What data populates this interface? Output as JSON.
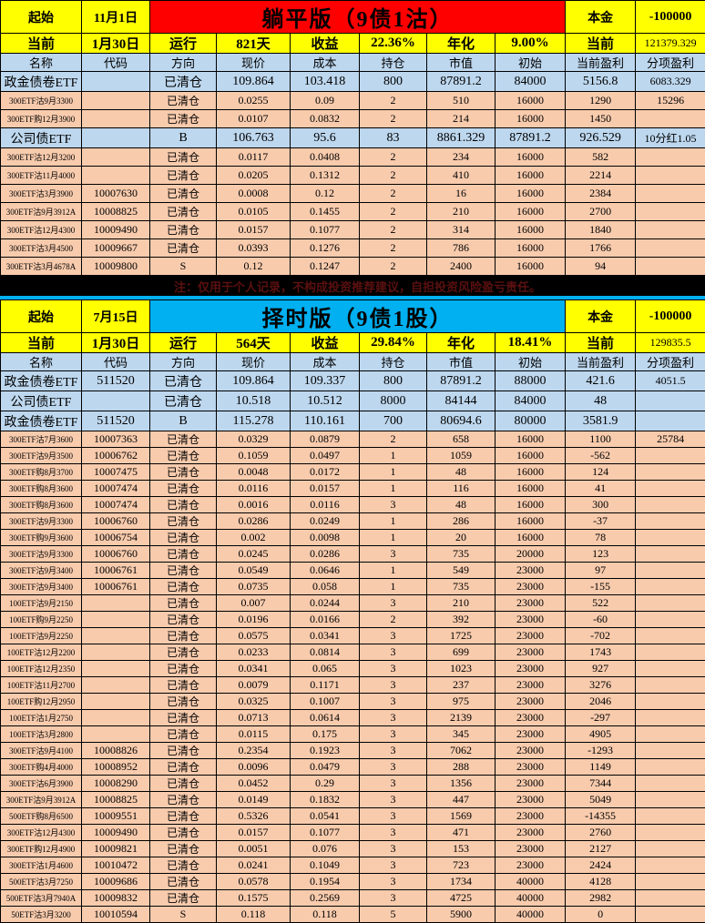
{
  "colors": {
    "accent_yellow": "#FFFF00",
    "section1_title_bg": "#FF0000",
    "section2_title_bg": "#00B0F0",
    "header_blue": "#BDD7EE",
    "option_row_peach": "#F8CBAD",
    "grid_black": "#000000",
    "note_dark_red": "#5C1010"
  },
  "columns": [
    "名称",
    "代码",
    "方向",
    "现价",
    "成本",
    "持仓",
    "市值",
    "初始",
    "当前盈利",
    "分项盈利"
  ],
  "separator": {
    "note": "注：仅用于个人记录，不构成投资推荐建议，自担投资风险盈亏责任。"
  },
  "sections": [
    {
      "start_label": "起始",
      "start_date": "11月1日",
      "title": "躺平版（9债1沽）",
      "principal_label": "本金",
      "principal_value": "-100000",
      "current_label": "当前",
      "current_date": "1月30日",
      "run_label": "运行",
      "run_value": "821天",
      "return_label": "收益",
      "return_value": "22.36%",
      "annual_label": "年化",
      "annual_value": "9.00%",
      "now_label": "当前",
      "now_value": "121379.329",
      "rows": [
        {
          "big": true,
          "name": "政金债卷ETF",
          "code": "",
          "dir": "已清仓",
          "price": "109.864",
          "cost": "103.418",
          "qty": "800",
          "mkt": "87891.2",
          "init": "84000",
          "profit": "5156.8",
          "sub": "6083.329"
        },
        {
          "big": false,
          "name": "300ETF沽9月3300",
          "code": "",
          "dir": "已清仓",
          "price": "0.0255",
          "cost": "0.09",
          "qty": "2",
          "mkt": "510",
          "init": "16000",
          "profit": "1290",
          "sub": "15296"
        },
        {
          "big": false,
          "name": "300ETF购12月3900",
          "code": "",
          "dir": "已清仓",
          "price": "0.0107",
          "cost": "0.0832",
          "qty": "2",
          "mkt": "214",
          "init": "16000",
          "profit": "1450",
          "sub": ""
        },
        {
          "big": true,
          "name": "公司债ETF",
          "code": "",
          "dir": "B",
          "price": "106.763",
          "cost": "95.6",
          "qty": "83",
          "mkt": "8861.329",
          "init": "87891.2",
          "profit": "926.529",
          "sub": "10分红1.05"
        },
        {
          "big": false,
          "name": "300ETF沽12月3200",
          "code": "",
          "dir": "已清仓",
          "price": "0.0117",
          "cost": "0.0408",
          "qty": "2",
          "mkt": "234",
          "init": "16000",
          "profit": "582",
          "sub": ""
        },
        {
          "big": false,
          "name": "300ETF沽11月4000",
          "code": "",
          "dir": "已清仓",
          "price": "0.0205",
          "cost": "0.1312",
          "qty": "2",
          "mkt": "410",
          "init": "16000",
          "profit": "2214",
          "sub": ""
        },
        {
          "big": false,
          "name": "300ETF沽3月3900",
          "code": "10007630",
          "dir": "已清仓",
          "price": "0.0008",
          "cost": "0.12",
          "qty": "2",
          "mkt": "16",
          "init": "16000",
          "profit": "2384",
          "sub": ""
        },
        {
          "big": false,
          "name": "300ETF沽9月3912A",
          "code": "10008825",
          "dir": "已清仓",
          "price": "0.0105",
          "cost": "0.1455",
          "qty": "2",
          "mkt": "210",
          "init": "16000",
          "profit": "2700",
          "sub": ""
        },
        {
          "big": false,
          "name": "300ETF沽12月4300",
          "code": "10009490",
          "dir": "已清仓",
          "price": "0.0157",
          "cost": "0.1077",
          "qty": "2",
          "mkt": "314",
          "init": "16000",
          "profit": "1840",
          "sub": ""
        },
        {
          "big": false,
          "name": "300ETF沽3月4500",
          "code": "10009667",
          "dir": "已清仓",
          "price": "0.0393",
          "cost": "0.1276",
          "qty": "2",
          "mkt": "786",
          "init": "16000",
          "profit": "1766",
          "sub": ""
        },
        {
          "big": false,
          "name": "300ETF沽3月4678A",
          "code": "10009800",
          "dir": "S",
          "price": "0.12",
          "cost": "0.1247",
          "qty": "2",
          "mkt": "2400",
          "init": "16000",
          "profit": "94",
          "sub": ""
        }
      ]
    },
    {
      "start_label": "起始",
      "start_date": "7月15日",
      "title": "择时版（9债1股）",
      "principal_label": "本金",
      "principal_value": "-100000",
      "current_label": "当前",
      "current_date": "1月30日",
      "run_label": "运行",
      "run_value": "564天",
      "return_label": "收益",
      "return_value": "29.84%",
      "annual_label": "年化",
      "annual_value": "18.41%",
      "now_label": "当前",
      "now_value": "129835.5",
      "rows": [
        {
          "big": true,
          "name": "政金债卷ETF",
          "code": "511520",
          "dir": "已清仓",
          "price": "109.864",
          "cost": "109.337",
          "qty": "800",
          "mkt": "87891.2",
          "init": "88000",
          "profit": "421.6",
          "sub": "4051.5"
        },
        {
          "big": true,
          "name": "公司债ETF",
          "code": "",
          "dir": "已清仓",
          "price": "10.518",
          "cost": "10.512",
          "qty": "8000",
          "mkt": "84144",
          "init": "84000",
          "profit": "48",
          "sub": ""
        },
        {
          "big": true,
          "name": "政金债卷ETF",
          "code": "511520",
          "dir": "B",
          "price": "115.278",
          "cost": "110.161",
          "qty": "700",
          "mkt": "80694.6",
          "init": "80000",
          "profit": "3581.9",
          "sub": ""
        },
        {
          "big": false,
          "name": "300ETF沽7月3600",
          "code": "10007363",
          "dir": "已清仓",
          "price": "0.0329",
          "cost": "0.0879",
          "qty": "2",
          "mkt": "658",
          "init": "16000",
          "profit": "1100",
          "sub": "25784"
        },
        {
          "big": false,
          "name": "300ETF沽9月3500",
          "code": "10006762",
          "dir": "已清仓",
          "price": "0.1059",
          "cost": "0.0497",
          "qty": "1",
          "mkt": "1059",
          "init": "16000",
          "profit": "-562",
          "sub": ""
        },
        {
          "big": false,
          "name": "300ETF购8月3700",
          "code": "10007475",
          "dir": "已清仓",
          "price": "0.0048",
          "cost": "0.0172",
          "qty": "1",
          "mkt": "48",
          "init": "16000",
          "profit": "124",
          "sub": ""
        },
        {
          "big": false,
          "name": "300ETF购8月3600",
          "code": "10007474",
          "dir": "已清仓",
          "price": "0.0116",
          "cost": "0.0157",
          "qty": "1",
          "mkt": "116",
          "init": "16000",
          "profit": "41",
          "sub": ""
        },
        {
          "big": false,
          "name": "300ETF购8月3600",
          "code": "10007474",
          "dir": "已清仓",
          "price": "0.0016",
          "cost": "0.0116",
          "qty": "3",
          "mkt": "48",
          "init": "16000",
          "profit": "300",
          "sub": ""
        },
        {
          "big": false,
          "name": "300ETF沽9月3300",
          "code": "10006760",
          "dir": "已清仓",
          "price": "0.0286",
          "cost": "0.0249",
          "qty": "1",
          "mkt": "286",
          "init": "16000",
          "profit": "-37",
          "sub": ""
        },
        {
          "big": false,
          "name": "300ETF购9月3600",
          "code": "10006754",
          "dir": "已清仓",
          "price": "0.002",
          "cost": "0.0098",
          "qty": "1",
          "mkt": "20",
          "init": "16000",
          "profit": "78",
          "sub": ""
        },
        {
          "big": false,
          "name": "300ETF沽9月3300",
          "code": "10006760",
          "dir": "已清仓",
          "price": "0.0245",
          "cost": "0.0286",
          "qty": "3",
          "mkt": "735",
          "init": "20000",
          "profit": "123",
          "sub": ""
        },
        {
          "big": false,
          "name": "300ETF沽9月3400",
          "code": "10006761",
          "dir": "已清仓",
          "price": "0.0549",
          "cost": "0.0646",
          "qty": "1",
          "mkt": "549",
          "init": "23000",
          "profit": "97",
          "sub": ""
        },
        {
          "big": false,
          "name": "300ETF沽9月3400",
          "code": "10006761",
          "dir": "已清仓",
          "price": "0.0735",
          "cost": "0.058",
          "qty": "1",
          "mkt": "735",
          "init": "23000",
          "profit": "-155",
          "sub": ""
        },
        {
          "big": false,
          "name": "100ETF沽9月2150",
          "code": "",
          "dir": "已清仓",
          "price": "0.007",
          "cost": "0.0244",
          "qty": "3",
          "mkt": "210",
          "init": "23000",
          "profit": "522",
          "sub": ""
        },
        {
          "big": false,
          "name": "100ETF购9月2250",
          "code": "",
          "dir": "已清仓",
          "price": "0.0196",
          "cost": "0.0166",
          "qty": "2",
          "mkt": "392",
          "init": "23000",
          "profit": "-60",
          "sub": ""
        },
        {
          "big": false,
          "name": "100ETF沽9月2250",
          "code": "",
          "dir": "已清仓",
          "price": "0.0575",
          "cost": "0.0341",
          "qty": "3",
          "mkt": "1725",
          "init": "23000",
          "profit": "-702",
          "sub": ""
        },
        {
          "big": false,
          "name": "100ETF沽12月2200",
          "code": "",
          "dir": "已清仓",
          "price": "0.0233",
          "cost": "0.0814",
          "qty": "3",
          "mkt": "699",
          "init": "23000",
          "profit": "1743",
          "sub": ""
        },
        {
          "big": false,
          "name": "100ETF沽12月2350",
          "code": "",
          "dir": "已清仓",
          "price": "0.0341",
          "cost": "0.065",
          "qty": "3",
          "mkt": "1023",
          "init": "23000",
          "profit": "927",
          "sub": ""
        },
        {
          "big": false,
          "name": "100ETF沽11月2700",
          "code": "",
          "dir": "已清仓",
          "price": "0.0079",
          "cost": "0.1171",
          "qty": "3",
          "mkt": "237",
          "init": "23000",
          "profit": "3276",
          "sub": ""
        },
        {
          "big": false,
          "name": "100ETF购12月2950",
          "code": "",
          "dir": "已清仓",
          "price": "0.0325",
          "cost": "0.1007",
          "qty": "3",
          "mkt": "975",
          "init": "23000",
          "profit": "2046",
          "sub": ""
        },
        {
          "big": false,
          "name": "100ETF沽1月2750",
          "code": "",
          "dir": "已清仓",
          "price": "0.0713",
          "cost": "0.0614",
          "qty": "3",
          "mkt": "2139",
          "init": "23000",
          "profit": "-297",
          "sub": ""
        },
        {
          "big": false,
          "name": "100ETF沽3月2800",
          "code": "",
          "dir": "已清仓",
          "price": "0.0115",
          "cost": "0.175",
          "qty": "3",
          "mkt": "345",
          "init": "23000",
          "profit": "4905",
          "sub": ""
        },
        {
          "big": false,
          "name": "300ETF沽9月4100",
          "code": "10008826",
          "dir": "已清仓",
          "price": "0.2354",
          "cost": "0.1923",
          "qty": "3",
          "mkt": "7062",
          "init": "23000",
          "profit": "-1293",
          "sub": ""
        },
        {
          "big": false,
          "name": "300ETF购4月4000",
          "code": "10008952",
          "dir": "已清仓",
          "price": "0.0096",
          "cost": "0.0479",
          "qty": "3",
          "mkt": "288",
          "init": "23000",
          "profit": "1149",
          "sub": ""
        },
        {
          "big": false,
          "name": "300ETF沽6月3900",
          "code": "10008290",
          "dir": "已清仓",
          "price": "0.0452",
          "cost": "0.29",
          "qty": "3",
          "mkt": "1356",
          "init": "23000",
          "profit": "7344",
          "sub": ""
        },
        {
          "big": false,
          "name": "300ETF沽9月3912A",
          "code": "10008825",
          "dir": "已清仓",
          "price": "0.0149",
          "cost": "0.1832",
          "qty": "3",
          "mkt": "447",
          "init": "23000",
          "profit": "5049",
          "sub": ""
        },
        {
          "big": false,
          "name": "500ETF购8月6500",
          "code": "10009551",
          "dir": "已清仓",
          "price": "0.5326",
          "cost": "0.0541",
          "qty": "3",
          "mkt": "1569",
          "init": "23000",
          "profit": "-14355",
          "sub": ""
        },
        {
          "big": false,
          "name": "300ETF沽12月4300",
          "code": "10009490",
          "dir": "已清仓",
          "price": "0.0157",
          "cost": "0.1077",
          "qty": "3",
          "mkt": "471",
          "init": "23000",
          "profit": "2760",
          "sub": ""
        },
        {
          "big": false,
          "name": "300ETF购12月4900",
          "code": "10009821",
          "dir": "已清仓",
          "price": "0.0051",
          "cost": "0.076",
          "qty": "3",
          "mkt": "153",
          "init": "23000",
          "profit": "2127",
          "sub": ""
        },
        {
          "big": false,
          "name": "300ETF沽1月4600",
          "code": "10010472",
          "dir": "已清仓",
          "price": "0.0241",
          "cost": "0.1049",
          "qty": "3",
          "mkt": "723",
          "init": "23000",
          "profit": "2424",
          "sub": ""
        },
        {
          "big": false,
          "name": "500ETF沽3月7250",
          "code": "10009686",
          "dir": "已清仓",
          "price": "0.0578",
          "cost": "0.1954",
          "qty": "3",
          "mkt": "1734",
          "init": "40000",
          "profit": "4128",
          "sub": ""
        },
        {
          "big": false,
          "name": "500ETF沽3月7940A",
          "code": "10009832",
          "dir": "已清仓",
          "price": "0.1575",
          "cost": "0.2569",
          "qty": "3",
          "mkt": "4725",
          "init": "40000",
          "profit": "2982",
          "sub": ""
        },
        {
          "big": false,
          "name": "50ETF沽3月3200",
          "code": "10010594",
          "dir": "S",
          "price": "0.118",
          "cost": "0.118",
          "qty": "5",
          "mkt": "5900",
          "init": "40000",
          "profit": "0",
          "sub": ""
        }
      ]
    }
  ]
}
